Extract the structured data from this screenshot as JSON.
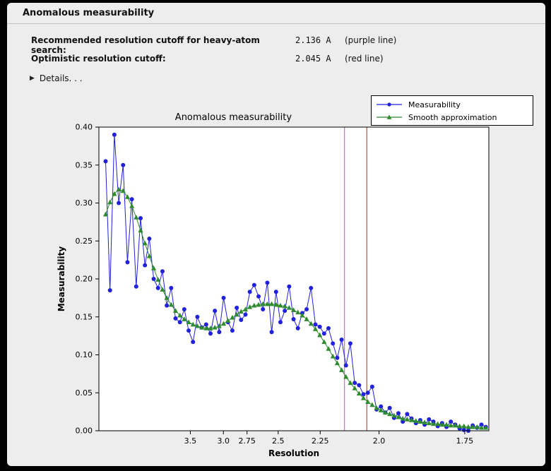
{
  "window": {
    "title": "Anomalous measurability"
  },
  "summary": {
    "rows": [
      {
        "label": "Recommended resolution cutoff for heavy-atom search:",
        "value": "2.136 A",
        "note": "(purple line)"
      },
      {
        "label": "Optimistic resolution cutoff:",
        "value": "2.045 A",
        "note": "(red line)"
      }
    ],
    "details_label": "Details. . ."
  },
  "chart_data": {
    "type": "line",
    "title": "Anomalous measurability",
    "xlabel": "Resolution",
    "ylabel": "Measurability",
    "x_axis_note": "Resolution in Angstrom on a nonlinear 1/d^2 scale, high resolution to the right",
    "ylim": [
      0.0,
      0.4
    ],
    "xlim_inv_d2": [
      0.0,
      0.348
    ],
    "grid": false,
    "y_ticks": [
      "0.00",
      "0.05",
      "0.10",
      "0.15",
      "0.20",
      "0.25",
      "0.30",
      "0.35",
      "0.40"
    ],
    "x_ticks": [
      {
        "label": "3.5",
        "inv_d2": 0.0816
      },
      {
        "label": "3.0",
        "inv_d2": 0.1111
      },
      {
        "label": "2.75",
        "inv_d2": 0.1322
      },
      {
        "label": "2.5",
        "inv_d2": 0.16
      },
      {
        "label": "2.25",
        "inv_d2": 0.1975
      },
      {
        "label": "2.0",
        "inv_d2": 0.25
      },
      {
        "label": "1.75",
        "inv_d2": 0.3265
      }
    ],
    "x_inv_d2": [
      0.006,
      0.0099,
      0.0138,
      0.0177,
      0.0216,
      0.0255,
      0.0294,
      0.0333,
      0.0372,
      0.0411,
      0.045,
      0.0489,
      0.0528,
      0.0567,
      0.0606,
      0.0645,
      0.0684,
      0.0723,
      0.0762,
      0.0801,
      0.084,
      0.0879,
      0.0918,
      0.0957,
      0.0996,
      0.1035,
      0.1074,
      0.1113,
      0.1152,
      0.1191,
      0.123,
      0.1269,
      0.1308,
      0.1347,
      0.1386,
      0.1425,
      0.1464,
      0.1503,
      0.1542,
      0.1581,
      0.162,
      0.1659,
      0.1698,
      0.1737,
      0.1776,
      0.1815,
      0.1854,
      0.1893,
      0.1932,
      0.1971,
      0.201,
      0.2049,
      0.2088,
      0.2127,
      0.2166,
      0.2205,
      0.2244,
      0.2283,
      0.2322,
      0.2361,
      0.24,
      0.2439,
      0.2478,
      0.2517,
      0.2556,
      0.2595,
      0.2634,
      0.2673,
      0.2712,
      0.2751,
      0.279,
      0.2829,
      0.2868,
      0.2907,
      0.2946,
      0.2985,
      0.3024,
      0.3063,
      0.3102,
      0.3141,
      0.318,
      0.3219,
      0.3258,
      0.3297,
      0.3336,
      0.3375,
      0.3414,
      0.3453
    ],
    "series": [
      {
        "name": "Measurability",
        "color": "#2020dd",
        "marker": "circle",
        "values": [
          0.355,
          0.185,
          0.39,
          0.3,
          0.35,
          0.222,
          0.305,
          0.19,
          0.28,
          0.218,
          0.253,
          0.2,
          0.188,
          0.21,
          0.165,
          0.188,
          0.148,
          0.143,
          0.16,
          0.132,
          0.117,
          0.15,
          0.136,
          0.14,
          0.128,
          0.158,
          0.13,
          0.175,
          0.143,
          0.132,
          0.162,
          0.146,
          0.153,
          0.183,
          0.192,
          0.177,
          0.16,
          0.195,
          0.13,
          0.183,
          0.143,
          0.158,
          0.19,
          0.147,
          0.135,
          0.155,
          0.16,
          0.188,
          0.14,
          0.137,
          0.128,
          0.135,
          0.115,
          0.096,
          0.12,
          0.086,
          0.115,
          0.063,
          0.06,
          0.048,
          0.05,
          0.058,
          0.028,
          0.032,
          0.024,
          0.03,
          0.017,
          0.023,
          0.012,
          0.022,
          0.016,
          0.01,
          0.014,
          0.008,
          0.015,
          0.012,
          0.006,
          0.01,
          0.005,
          0.012,
          0.008,
          0.003,
          0.001,
          0.0,
          0.007,
          0.004,
          0.008,
          0.005
        ]
      },
      {
        "name": "Smooth approximation",
        "color": "#2e8b2e",
        "marker": "triangle",
        "values": [
          0.285,
          0.301,
          0.312,
          0.318,
          0.316,
          0.308,
          0.296,
          0.281,
          0.264,
          0.247,
          0.23,
          0.214,
          0.199,
          0.186,
          0.175,
          0.166,
          0.158,
          0.152,
          0.147,
          0.143,
          0.14,
          0.138,
          0.136,
          0.135,
          0.135,
          0.136,
          0.138,
          0.141,
          0.145,
          0.149,
          0.153,
          0.157,
          0.16,
          0.163,
          0.165,
          0.166,
          0.167,
          0.167,
          0.167,
          0.166,
          0.165,
          0.164,
          0.162,
          0.159,
          0.156,
          0.152,
          0.147,
          0.141,
          0.134,
          0.126,
          0.117,
          0.108,
          0.098,
          0.089,
          0.08,
          0.071,
          0.063,
          0.056,
          0.049,
          0.043,
          0.038,
          0.034,
          0.03,
          0.027,
          0.024,
          0.022,
          0.02,
          0.018,
          0.016,
          0.015,
          0.014,
          0.013,
          0.012,
          0.011,
          0.01,
          0.009,
          0.009,
          0.008,
          0.008,
          0.007,
          0.007,
          0.006,
          0.006,
          0.005,
          0.005,
          0.005,
          0.004,
          0.004
        ]
      }
    ],
    "vlines": [
      {
        "name": "purple line",
        "resolution_A": 2.136,
        "inv_d2": 0.2192,
        "color": "#bb55bb"
      },
      {
        "name": "red line",
        "resolution_A": 2.045,
        "inv_d2": 0.2391,
        "color": "#993333"
      }
    ],
    "legend": {
      "position": "top-right",
      "entries": [
        "Measurability",
        "Smooth approximation"
      ]
    }
  }
}
